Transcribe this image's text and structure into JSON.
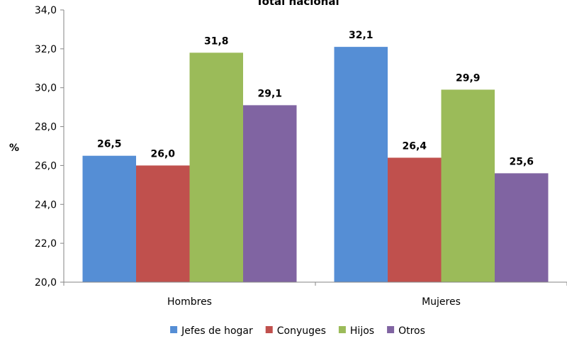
{
  "chart_data": {
    "type": "bar",
    "title": "Total nacional",
    "ylabel": "%",
    "xlabel": "",
    "ylim": [
      20,
      34
    ],
    "ytick_step": 2,
    "ytick_labels": [
      "20,0",
      "22,0",
      "24,0",
      "26,0",
      "28,0",
      "30,0",
      "32,0",
      "34,0"
    ],
    "categories": [
      "Hombres",
      "Mujeres"
    ],
    "series": [
      {
        "name": "Jefes de hogar",
        "color": "#558ED5",
        "values": [
          26.5,
          32.1
        ],
        "labels": [
          "26,5",
          "32,1"
        ]
      },
      {
        "name": "Conyuges",
        "color": "#C0504D",
        "values": [
          26.0,
          26.4
        ],
        "labels": [
          "26,0",
          "26,4"
        ]
      },
      {
        "name": "Hijos",
        "color": "#9BBB59",
        "values": [
          31.8,
          29.9
        ],
        "labels": [
          "31,8",
          "29,9"
        ]
      },
      {
        "name": "Otros",
        "color": "#8064A2",
        "values": [
          29.1,
          25.6
        ],
        "labels": [
          "29,1",
          "25,6"
        ]
      }
    ],
    "grid": false,
    "legend": "bottom"
  }
}
